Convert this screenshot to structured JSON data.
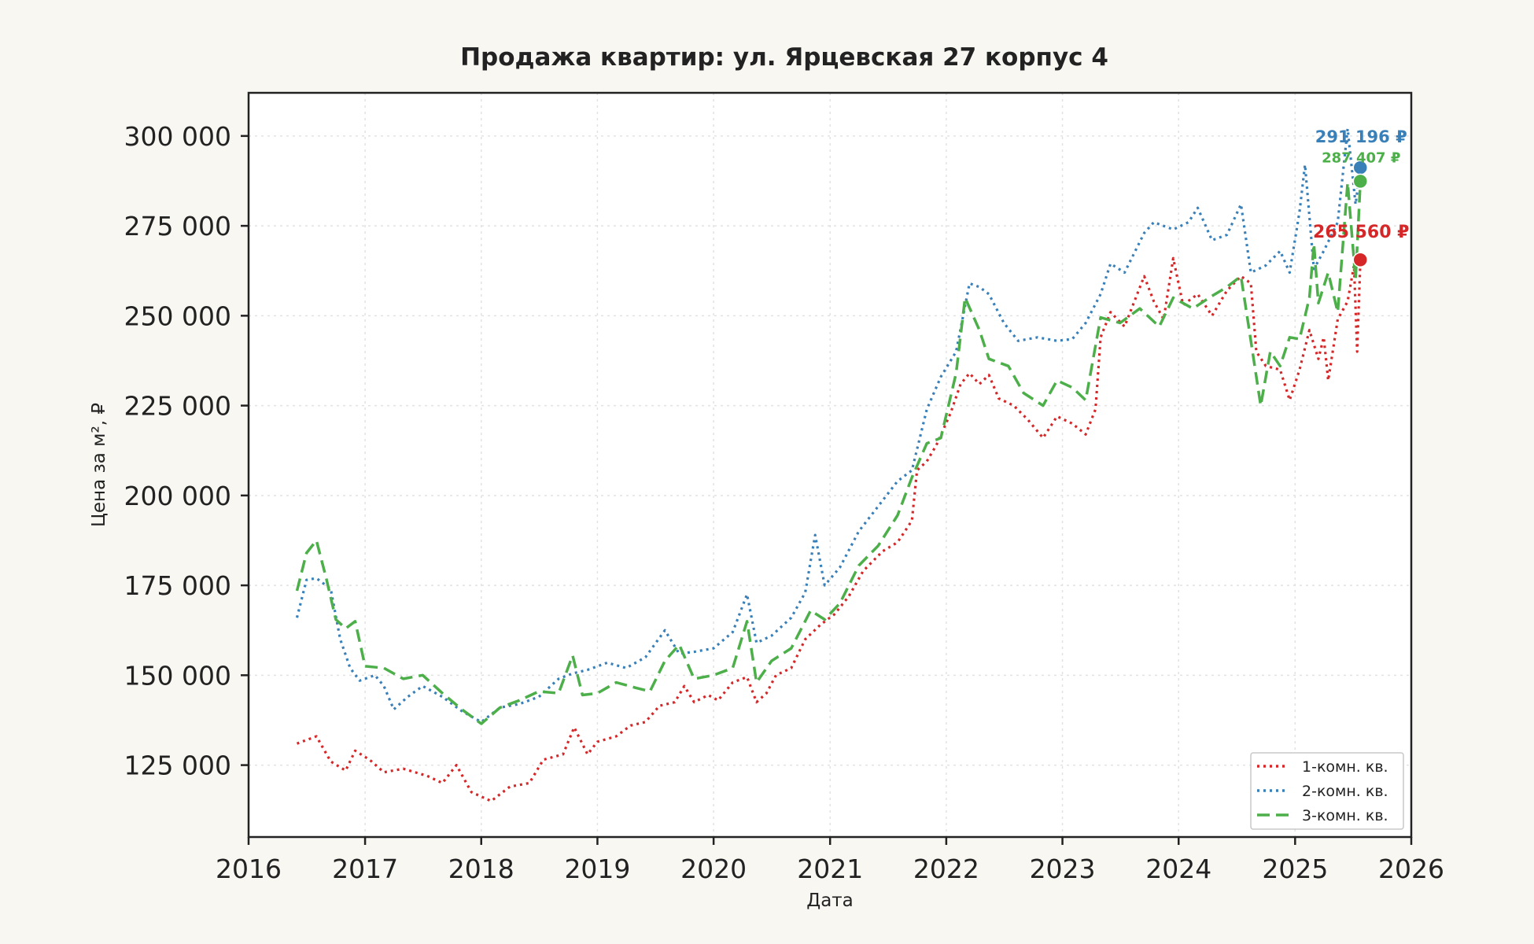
{
  "chart_data": {
    "type": "line",
    "title": "Продажа квартир: ул. Ярцевская 27 корпус 4",
    "xlabel": "Дата",
    "ylabel": "Цена за м², ₽",
    "xlim": [
      "2016-01-01",
      "2026-01-01"
    ],
    "ylim": [
      105000,
      312000
    ],
    "x_ticks": [
      "2016",
      "2017",
      "2018",
      "2019",
      "2020",
      "2021",
      "2022",
      "2023",
      "2024",
      "2025",
      "2026"
    ],
    "y_ticks": [
      125000,
      150000,
      175000,
      200000,
      225000,
      250000,
      275000,
      300000
    ],
    "y_tick_labels": [
      "125 000",
      "150 000",
      "175 000",
      "200 000",
      "225 000",
      "250 000",
      "275 000",
      "300 000"
    ],
    "grid": true,
    "legend_position": "lower-right",
    "series": [
      {
        "name": "1-комн. кв.",
        "color": "#d62728",
        "dash": "dotted",
        "points": [
          [
            "2016-06-01",
            131000
          ],
          [
            "2016-08-01",
            133000
          ],
          [
            "2016-09-15",
            126000
          ],
          [
            "2016-11-01",
            123500
          ],
          [
            "2016-12-01",
            129000
          ],
          [
            "2017-01-15",
            126500
          ],
          [
            "2017-03-01",
            123000
          ],
          [
            "2017-05-01",
            124000
          ],
          [
            "2017-07-15",
            122000
          ],
          [
            "2017-09-01",
            120000
          ],
          [
            "2017-10-15",
            125000
          ],
          [
            "2017-12-01",
            117500
          ],
          [
            "2018-02-01",
            115000
          ],
          [
            "2018-04-01",
            119000
          ],
          [
            "2018-06-01",
            120000
          ],
          [
            "2018-07-15",
            126500
          ],
          [
            "2018-09-15",
            128000
          ],
          [
            "2018-10-20",
            135500
          ],
          [
            "2018-12-01",
            128000
          ],
          [
            "2019-01-01",
            131500
          ],
          [
            "2019-03-01",
            133000
          ],
          [
            "2019-04-15",
            136000
          ],
          [
            "2019-06-01",
            137000
          ],
          [
            "2019-07-15",
            141500
          ],
          [
            "2019-09-01",
            142500
          ],
          [
            "2019-10-01",
            147000
          ],
          [
            "2019-11-01",
            142500
          ],
          [
            "2019-12-15",
            144500
          ],
          [
            "2020-01-15",
            143000
          ],
          [
            "2020-03-01",
            148000
          ],
          [
            "2020-04-15",
            149500
          ],
          [
            "2020-05-15",
            142500
          ],
          [
            "2020-06-15",
            145000
          ],
          [
            "2020-07-15",
            150000
          ],
          [
            "2020-09-01",
            152000
          ],
          [
            "2020-10-15",
            160000
          ],
          [
            "2020-12-01",
            164000
          ],
          [
            "2021-01-15",
            167000
          ],
          [
            "2021-03-01",
            172000
          ],
          [
            "2021-04-15",
            179000
          ],
          [
            "2021-06-15",
            184500
          ],
          [
            "2021-08-01",
            187000
          ],
          [
            "2021-09-15",
            193000
          ],
          [
            "2021-10-01",
            207000
          ],
          [
            "2021-11-01",
            209500
          ],
          [
            "2021-12-01",
            214000
          ],
          [
            "2022-01-15",
            223000
          ],
          [
            "2022-02-15",
            231000
          ],
          [
            "2022-03-15",
            234000
          ],
          [
            "2022-04-15",
            231000
          ],
          [
            "2022-05-15",
            233500
          ],
          [
            "2022-06-15",
            227000
          ],
          [
            "2022-08-01",
            225000
          ],
          [
            "2022-09-15",
            221000
          ],
          [
            "2022-11-01",
            216000
          ],
          [
            "2022-12-15",
            222000
          ],
          [
            "2023-02-01",
            220000
          ],
          [
            "2023-03-15",
            217000
          ],
          [
            "2023-04-15",
            224000
          ],
          [
            "2023-05-01",
            244000
          ],
          [
            "2023-06-01",
            251000
          ],
          [
            "2023-07-15",
            247000
          ],
          [
            "2023-08-15",
            254000
          ],
          [
            "2023-09-15",
            261000
          ],
          [
            "2023-10-15",
            254000
          ],
          [
            "2023-11-15",
            249000
          ],
          [
            "2023-12-15",
            266000
          ],
          [
            "2024-01-15",
            253000
          ],
          [
            "2024-03-01",
            256000
          ],
          [
            "2024-04-15",
            250000
          ],
          [
            "2024-06-01",
            257000
          ],
          [
            "2024-07-15",
            261000
          ],
          [
            "2024-08-15",
            259000
          ],
          [
            "2024-09-01",
            240000
          ],
          [
            "2024-10-01",
            236000
          ],
          [
            "2024-11-15",
            235000
          ],
          [
            "2024-12-15",
            226500
          ],
          [
            "2025-01-15",
            235000
          ],
          [
            "2025-02-15",
            246000
          ],
          [
            "2025-03-15",
            238000
          ],
          [
            "2025-04-01",
            244000
          ],
          [
            "2025-04-15",
            232000
          ],
          [
            "2025-05-15",
            249000
          ],
          [
            "2025-06-15",
            254000
          ],
          [
            "2025-07-05",
            264000
          ],
          [
            "2025-07-15",
            240000
          ],
          [
            "2025-07-25",
            265560
          ]
        ]
      },
      {
        "name": "2-комн. кв.",
        "color": "#3a80b8",
        "dash": "dotted",
        "points": [
          [
            "2016-06-01",
            166000
          ],
          [
            "2016-07-01",
            176500
          ],
          [
            "2016-08-01",
            177000
          ],
          [
            "2016-09-15",
            174000
          ],
          [
            "2016-10-15",
            160000
          ],
          [
            "2016-11-15",
            152000
          ],
          [
            "2016-12-15",
            148500
          ],
          [
            "2017-02-01",
            150000
          ],
          [
            "2017-03-01",
            147000
          ],
          [
            "2017-04-01",
            140500
          ],
          [
            "2017-05-15",
            144000
          ],
          [
            "2017-07-01",
            147000
          ],
          [
            "2017-09-01",
            144000
          ],
          [
            "2017-11-01",
            140000
          ],
          [
            "2018-01-01",
            137000
          ],
          [
            "2018-03-01",
            141000
          ],
          [
            "2018-05-01",
            142000
          ],
          [
            "2018-07-01",
            144000
          ],
          [
            "2018-09-01",
            149000
          ],
          [
            "2018-10-15",
            150500
          ],
          [
            "2018-12-01",
            151500
          ],
          [
            "2019-02-01",
            153500
          ],
          [
            "2019-04-01",
            152000
          ],
          [
            "2019-06-01",
            155000
          ],
          [
            "2019-08-01",
            162500
          ],
          [
            "2019-09-15",
            156000
          ],
          [
            "2019-11-01",
            156500
          ],
          [
            "2020-01-01",
            157500
          ],
          [
            "2020-03-01",
            162000
          ],
          [
            "2020-04-15",
            172500
          ],
          [
            "2020-05-15",
            159000
          ],
          [
            "2020-07-01",
            161000
          ],
          [
            "2020-09-01",
            166000
          ],
          [
            "2020-10-15",
            173000
          ],
          [
            "2020-11-15",
            189000
          ],
          [
            "2020-12-15",
            175000
          ],
          [
            "2021-02-01",
            180000
          ],
          [
            "2021-04-01",
            190000
          ],
          [
            "2021-06-01",
            197000
          ],
          [
            "2021-08-01",
            204000
          ],
          [
            "2021-09-15",
            207000
          ],
          [
            "2021-11-01",
            224000
          ],
          [
            "2021-12-15",
            233000
          ],
          [
            "2022-02-01",
            240000
          ],
          [
            "2022-03-15",
            259000
          ],
          [
            "2022-04-15",
            258000
          ],
          [
            "2022-05-15",
            256000
          ],
          [
            "2022-07-01",
            248000
          ],
          [
            "2022-08-15",
            243000
          ],
          [
            "2022-10-15",
            244000
          ],
          [
            "2022-12-15",
            243000
          ],
          [
            "2023-02-01",
            243500
          ],
          [
            "2023-03-15",
            248000
          ],
          [
            "2023-05-01",
            256000
          ],
          [
            "2023-06-01",
            264500
          ],
          [
            "2023-07-15",
            262000
          ],
          [
            "2023-09-15",
            273000
          ],
          [
            "2023-10-15",
            276000
          ],
          [
            "2023-12-15",
            274000
          ],
          [
            "2024-02-01",
            276000
          ],
          [
            "2024-03-01",
            280000
          ],
          [
            "2024-04-15",
            271000
          ],
          [
            "2024-06-01",
            272500
          ],
          [
            "2024-07-15",
            281000
          ],
          [
            "2024-08-15",
            262000
          ],
          [
            "2024-10-01",
            264000
          ],
          [
            "2024-11-15",
            268000
          ],
          [
            "2024-12-15",
            262000
          ],
          [
            "2025-01-15",
            279000
          ],
          [
            "2025-02-01",
            292000
          ],
          [
            "2025-03-01",
            263000
          ],
          [
            "2025-04-01",
            268000
          ],
          [
            "2025-05-15",
            276000
          ],
          [
            "2025-06-15",
            302000
          ],
          [
            "2025-07-10",
            281000
          ],
          [
            "2025-07-25",
            291196
          ]
        ]
      },
      {
        "name": "3-комн. кв.",
        "color": "#4daf4a",
        "dash": "dashed",
        "points": [
          [
            "2016-06-01",
            173500
          ],
          [
            "2016-07-01",
            184000
          ],
          [
            "2016-08-01",
            187500
          ],
          [
            "2016-09-01",
            177000
          ],
          [
            "2016-10-01",
            165500
          ],
          [
            "2016-11-01",
            163000
          ],
          [
            "2016-12-01",
            165000
          ],
          [
            "2017-01-01",
            152500
          ],
          [
            "2017-03-01",
            152000
          ],
          [
            "2017-05-01",
            149000
          ],
          [
            "2017-07-01",
            150000
          ],
          [
            "2017-09-01",
            145000
          ],
          [
            "2017-11-01",
            140500
          ],
          [
            "2018-01-01",
            136500
          ],
          [
            "2018-03-01",
            141000
          ],
          [
            "2018-05-01",
            143000
          ],
          [
            "2018-07-01",
            145500
          ],
          [
            "2018-09-01",
            145000
          ],
          [
            "2018-10-15",
            155500
          ],
          [
            "2018-11-15",
            144500
          ],
          [
            "2019-01-01",
            145000
          ],
          [
            "2019-03-01",
            148000
          ],
          [
            "2019-05-01",
            146500
          ],
          [
            "2019-06-15",
            145500
          ],
          [
            "2019-08-01",
            154000
          ],
          [
            "2019-09-15",
            158500
          ],
          [
            "2019-11-01",
            149000
          ],
          [
            "2020-01-01",
            150000
          ],
          [
            "2020-03-01",
            152000
          ],
          [
            "2020-04-15",
            165000
          ],
          [
            "2020-05-15",
            148000
          ],
          [
            "2020-07-01",
            154000
          ],
          [
            "2020-09-01",
            157500
          ],
          [
            "2020-11-01",
            168000
          ],
          [
            "2020-12-15",
            165500
          ],
          [
            "2021-02-01",
            170000
          ],
          [
            "2021-04-01",
            180500
          ],
          [
            "2021-06-01",
            186000
          ],
          [
            "2021-08-01",
            194500
          ],
          [
            "2021-09-15",
            205000
          ],
          [
            "2021-11-01",
            214500
          ],
          [
            "2021-12-15",
            216000
          ],
          [
            "2022-02-01",
            234000
          ],
          [
            "2022-03-01",
            255000
          ],
          [
            "2022-04-15",
            246000
          ],
          [
            "2022-05-15",
            238000
          ],
          [
            "2022-07-15",
            236000
          ],
          [
            "2022-09-01",
            228500
          ],
          [
            "2022-11-01",
            225000
          ],
          [
            "2022-12-15",
            232000
          ],
          [
            "2023-02-01",
            230000
          ],
          [
            "2023-03-15",
            226500
          ],
          [
            "2023-05-01",
            249500
          ],
          [
            "2023-07-01",
            248000
          ],
          [
            "2023-09-01",
            252000
          ],
          [
            "2023-11-01",
            247000
          ],
          [
            "2023-12-15",
            255000
          ],
          [
            "2024-02-15",
            252000
          ],
          [
            "2024-04-15",
            255500
          ],
          [
            "2024-06-01",
            258000
          ],
          [
            "2024-07-15",
            261000
          ],
          [
            "2024-08-15",
            243000
          ],
          [
            "2024-09-15",
            225000
          ],
          [
            "2024-10-15",
            240000
          ],
          [
            "2024-11-15",
            236000
          ],
          [
            "2024-12-15",
            244000
          ],
          [
            "2025-01-15",
            243500
          ],
          [
            "2025-02-15",
            255000
          ],
          [
            "2025-03-01",
            270000
          ],
          [
            "2025-03-15",
            253500
          ],
          [
            "2025-04-15",
            262000
          ],
          [
            "2025-05-15",
            251000
          ],
          [
            "2025-06-15",
            287000
          ],
          [
            "2025-07-10",
            260000
          ],
          [
            "2025-07-25",
            287407
          ]
        ]
      }
    ],
    "end_labels": [
      {
        "series": "2-комн. кв.",
        "date": "2025-07-25",
        "value": 291196,
        "text": "291 196 ₽",
        "color": "#3a80b8"
      },
      {
        "series": "3-комн. кв.",
        "date": "2025-07-25",
        "value": 287407,
        "text": "287 407 ₽",
        "color": "#4daf4a"
      },
      {
        "series": "1-комн. кв.",
        "date": "2025-07-25",
        "value": 265560,
        "text": "265 560 ₽",
        "color": "#d62728"
      }
    ]
  }
}
